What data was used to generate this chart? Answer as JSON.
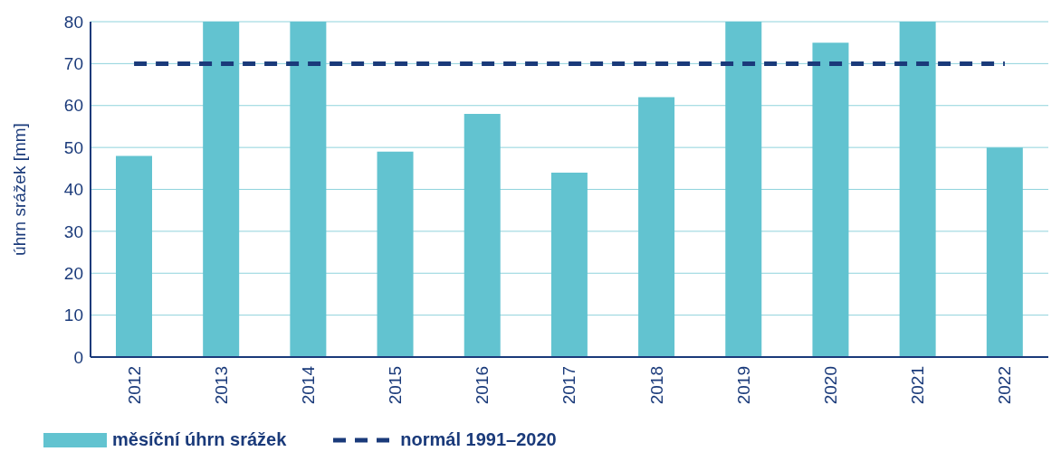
{
  "chart_data": {
    "type": "bar",
    "ylabel": "úhrn srážek [mm]",
    "categories": [
      "2012",
      "2013",
      "2014",
      "2015",
      "2016",
      "2017",
      "2018",
      "2019",
      "2020",
      "2021",
      "2022"
    ],
    "series": [
      {
        "name": "měsíční úhrn srážek",
        "color": "#62c3d0",
        "values": [
          48,
          80,
          80,
          49,
          58,
          44,
          62,
          80,
          75,
          80,
          50
        ]
      },
      {
        "name": "normál 1991–2020",
        "type": "line",
        "color": "#1a3a7a",
        "line_style": "dashed",
        "marker": "none",
        "values": [
          70,
          70,
          70,
          70,
          70,
          70,
          70,
          70,
          70,
          70,
          70
        ]
      }
    ],
    "ylim": [
      0,
      80
    ],
    "yticks": [
      0,
      10,
      20,
      30,
      40,
      50,
      60,
      70,
      80
    ],
    "grid": "y",
    "legend": "bottom left"
  }
}
